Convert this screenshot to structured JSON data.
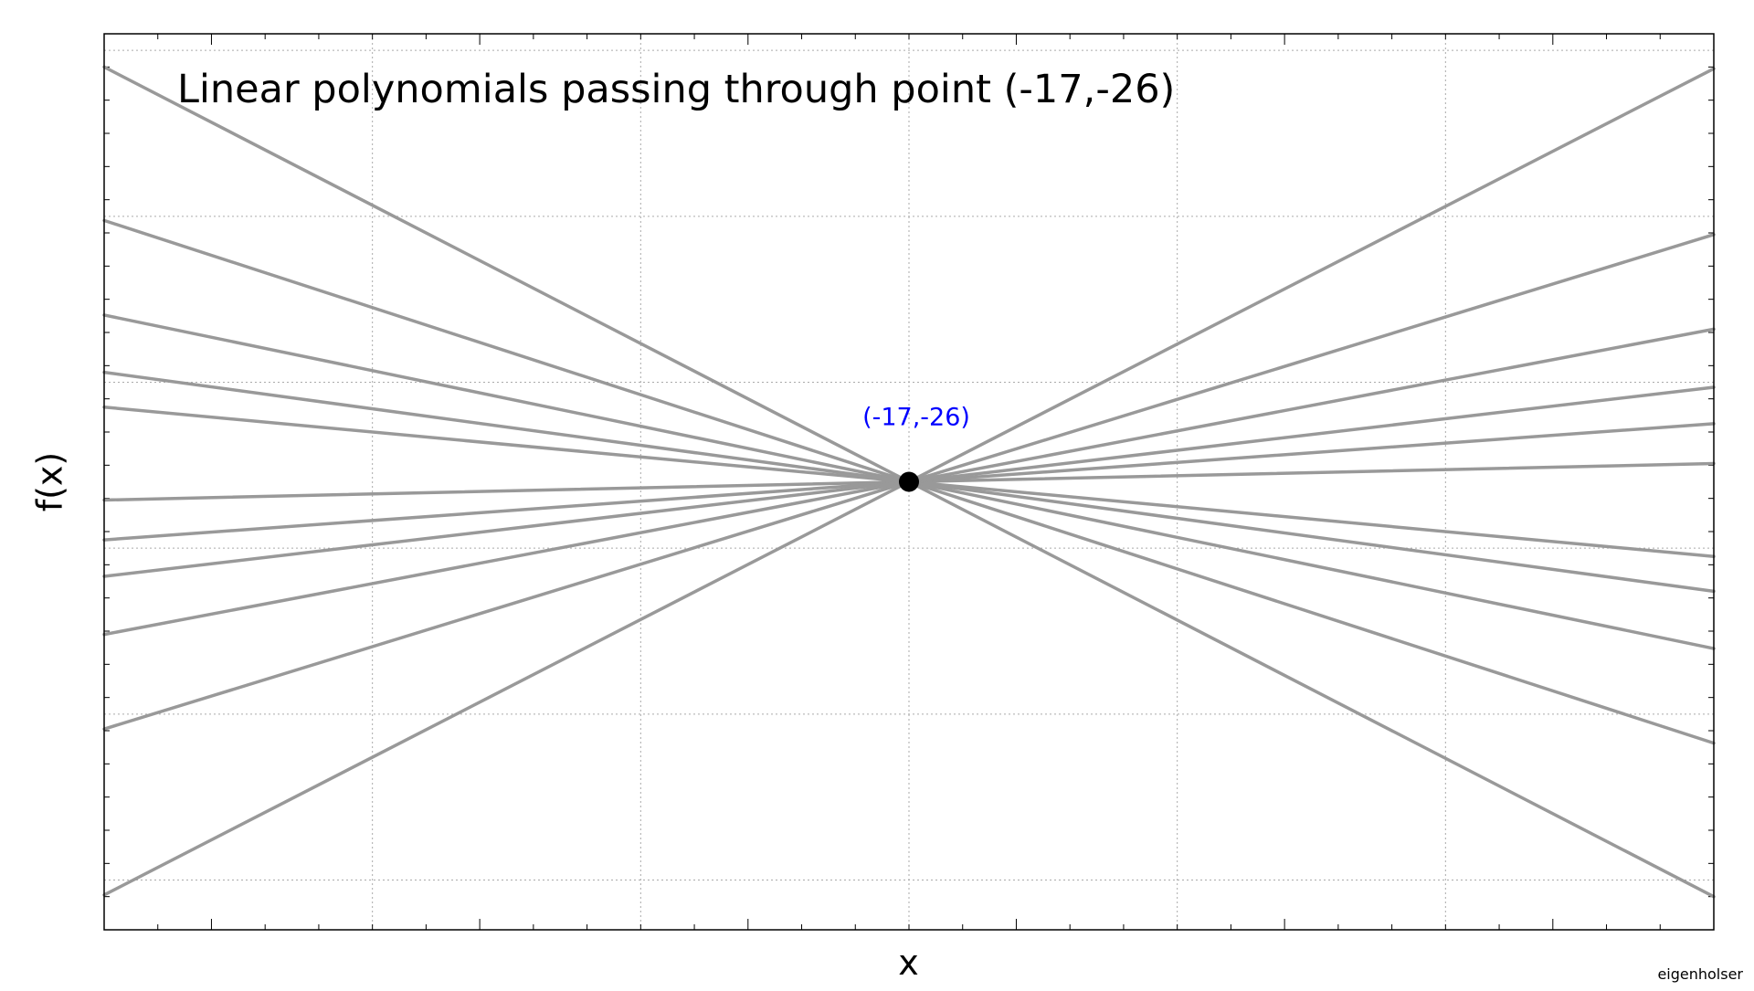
{
  "chart_data": {
    "type": "line",
    "title": "Linear polynomials passing through point (-17,-26)",
    "xlabel": "x",
    "ylabel": "f(x)",
    "xlim": [
      -32,
      -2
    ],
    "ylim": [
      -53,
      1
    ],
    "grid": true,
    "legend": "none",
    "point": {
      "x": -17,
      "y": -26,
      "label": "(-17,-26)"
    },
    "series": [
      {
        "x": [
          -32,
          -2
        ],
        "y": [
          -1,
          -51
        ]
      },
      {
        "x": [
          -32,
          -2
        ],
        "y": [
          -10.25,
          -41.75
        ]
      },
      {
        "x": [
          -32,
          -2
        ],
        "y": [
          -15.95,
          -36.05
        ]
      },
      {
        "x": [
          -32,
          -2
        ],
        "y": [
          -19.4,
          -32.6
        ]
      },
      {
        "x": [
          -32,
          -2
        ],
        "y": [
          -21.5,
          -30.5
        ]
      },
      {
        "x": [
          -32,
          -2
        ],
        "y": [
          -27.1,
          -24.9
        ]
      },
      {
        "x": [
          -32,
          -2
        ],
        "y": [
          -29.5,
          -22.5
        ]
      },
      {
        "x": [
          -32,
          -2
        ],
        "y": [
          -31.7,
          -20.3
        ]
      },
      {
        "x": [
          -32,
          -2
        ],
        "y": [
          -35.2,
          -16.8
        ]
      },
      {
        "x": [
          -32,
          -2
        ],
        "y": [
          -40.9,
          -11.1
        ]
      },
      {
        "x": [
          -32,
          -2
        ],
        "y": [
          -50.9,
          -1.1
        ]
      }
    ],
    "colors": {
      "line": "#999999",
      "point": "#000000",
      "point_label": "#0000ff",
      "grid": "#aaaaaa",
      "frame": "#000000"
    }
  },
  "credit": "eigenholser"
}
